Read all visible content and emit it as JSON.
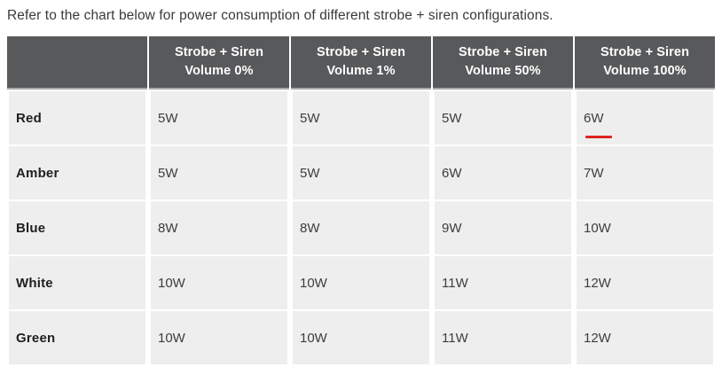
{
  "intro": {
    "text": "Refer to the chart below for power consumption of different strobe + siren configurations."
  },
  "table": {
    "corner_label": "",
    "columns": [
      {
        "line1": "Strobe + Siren",
        "line2": "Volume 0%"
      },
      {
        "line1": "Strobe + Siren",
        "line2": "Volume 1%"
      },
      {
        "line1": "Strobe + Siren",
        "line2": "Volume 50%"
      },
      {
        "line1": "Strobe + Siren",
        "line2": "Volume 100%"
      }
    ],
    "rows": [
      {
        "label": "Red",
        "values": [
          "5W",
          "5W",
          "5W",
          "6W"
        ]
      },
      {
        "label": "Amber",
        "values": [
          "5W",
          "5W",
          "6W",
          "7W"
        ]
      },
      {
        "label": "Blue",
        "values": [
          "8W",
          "8W",
          "9W",
          "10W"
        ]
      },
      {
        "label": "White",
        "values": [
          "10W",
          "10W",
          "11W",
          "12W"
        ]
      },
      {
        "label": "Green",
        "values": [
          "10W",
          "10W",
          "11W",
          "12W"
        ]
      }
    ],
    "highlight": {
      "row": "Red",
      "column": "Strobe + Siren Volume 100%",
      "value": "6W",
      "style": "red-underline"
    }
  },
  "colors": {
    "header_bg": "#58595b",
    "header_text": "#ffffff",
    "header_divider": "#a9a9a9",
    "cell_bg": "#eeeeee",
    "label_text": "#1f1f1f",
    "value_text": "#3d3d3d",
    "body_text": "#3a3a3a",
    "highlight_red": "#e02320"
  },
  "chart_data": {
    "type": "table",
    "title": "Refer to the chart below for power consumption of different strobe + siren configurations.",
    "categories": [
      "Strobe + Siren Volume 0%",
      "Strobe + Siren Volume 1%",
      "Strobe + Siren Volume 50%",
      "Strobe + Siren Volume 100%"
    ],
    "series": [
      {
        "name": "Red",
        "values_watts": [
          5,
          5,
          5,
          6
        ]
      },
      {
        "name": "Amber",
        "values_watts": [
          5,
          5,
          6,
          7
        ]
      },
      {
        "name": "Blue",
        "values_watts": [
          8,
          8,
          9,
          10
        ]
      },
      {
        "name": "White",
        "values_watts": [
          10,
          10,
          11,
          12
        ]
      },
      {
        "name": "Green",
        "values_watts": [
          10,
          10,
          11,
          12
        ]
      }
    ],
    "annotations": [
      {
        "text": "red underline highlight",
        "target": "Red @ Volume 100% (6W)"
      }
    ]
  }
}
